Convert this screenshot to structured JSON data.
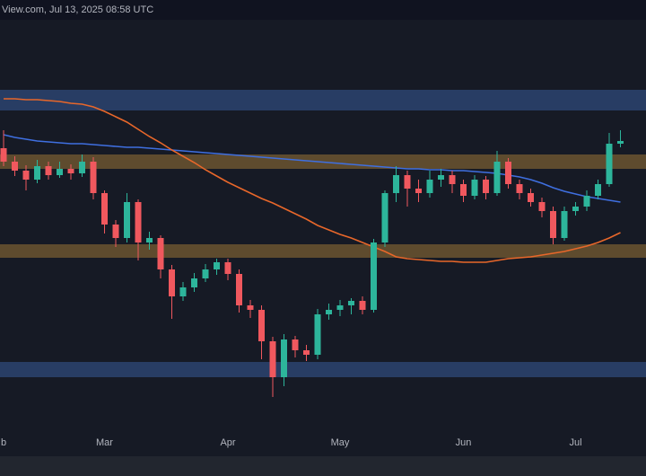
{
  "chart_data": {
    "type": "candlestick",
    "title": "View.com, Jul 13, 2025 08:58 UTC",
    "categories": [
      "b",
      null,
      null,
      null,
      null,
      null,
      null,
      null,
      null,
      "Mar",
      null,
      null,
      null,
      null,
      null,
      null,
      null,
      null,
      null,
      null,
      "Apr",
      null,
      null,
      null,
      null,
      null,
      null,
      null,
      null,
      null,
      "May",
      null,
      null,
      null,
      null,
      null,
      null,
      null,
      null,
      null,
      null,
      "Jun",
      null,
      null,
      null,
      null,
      null,
      null,
      null,
      null,
      null,
      "Jul",
      null,
      null,
      null,
      null
    ],
    "open": [
      365,
      350,
      340,
      330,
      345,
      335,
      342,
      337,
      350,
      315,
      280,
      265,
      305,
      260,
      265,
      230,
      200,
      210,
      220,
      230,
      238,
      225,
      190,
      185,
      150,
      110,
      152,
      140,
      135,
      180,
      185,
      190,
      195,
      185,
      260,
      315,
      335,
      320,
      315,
      330,
      335,
      325,
      312,
      330,
      315,
      350,
      325,
      315,
      305,
      295,
      265,
      295,
      300,
      312,
      325,
      370
    ],
    "high": [
      385,
      356,
      346,
      352,
      350,
      350,
      347,
      358,
      355,
      318,
      285,
      315,
      308,
      272,
      268,
      235,
      216,
      226,
      236,
      242,
      242,
      230,
      196,
      190,
      155,
      158,
      156,
      146,
      186,
      192,
      196,
      198,
      200,
      264,
      318,
      345,
      340,
      330,
      340,
      342,
      340,
      330,
      335,
      334,
      362,
      354,
      330,
      320,
      310,
      300,
      300,
      305,
      318,
      330,
      382,
      385
    ],
    "low": [
      345,
      334,
      318,
      326,
      330,
      332,
      330,
      333,
      308,
      270,
      255,
      260,
      240,
      252,
      220,
      175,
      195,
      205,
      216,
      224,
      218,
      182,
      176,
      130,
      88,
      100,
      132,
      128,
      130,
      174,
      178,
      180,
      180,
      182,
      255,
      305,
      300,
      305,
      310,
      322,
      315,
      305,
      308,
      308,
      312,
      320,
      308,
      300,
      288,
      258,
      262,
      290,
      295,
      308,
      322,
      366
    ],
    "close": [
      350,
      340,
      330,
      345,
      335,
      342,
      337,
      350,
      315,
      280,
      265,
      305,
      260,
      265,
      230,
      200,
      210,
      220,
      230,
      238,
      225,
      190,
      185,
      150,
      110,
      152,
      140,
      135,
      180,
      185,
      190,
      195,
      185,
      260,
      315,
      335,
      320,
      315,
      330,
      335,
      325,
      312,
      330,
      315,
      350,
      325,
      315,
      305,
      295,
      265,
      295,
      300,
      312,
      325,
      370,
      373
    ],
    "up_color": "#2db59b",
    "down_color": "#f0585e",
    "series": [
      {
        "color": "#3f6fe0",
        "values": [
          380,
          377,
          375,
          373,
          372,
          371,
          370,
          370,
          369,
          368,
          367,
          366,
          366,
          365,
          364,
          363,
          362,
          361,
          360,
          359,
          358,
          357,
          356,
          355,
          354,
          353,
          352,
          351,
          350,
          349,
          348,
          347,
          346,
          345,
          344,
          343,
          342,
          342,
          341,
          341,
          340,
          340,
          339,
          338,
          337,
          335,
          333,
          330,
          326,
          321,
          317,
          314,
          311,
          309,
          307,
          305
        ]
      },
      {
        "color": "#e8672a",
        "values": [
          420,
          420,
          419,
          419,
          418,
          417,
          415,
          414,
          411,
          406,
          400,
          394,
          386,
          378,
          371,
          363,
          356,
          349,
          341,
          334,
          327,
          321,
          315,
          309,
          304,
          298,
          292,
          286,
          279,
          274,
          269,
          265,
          260,
          255,
          250,
          244,
          242,
          241,
          240,
          239,
          239,
          238,
          238,
          238,
          240,
          242,
          243,
          244,
          246,
          248,
          250,
          253,
          256,
          260,
          265,
          271
        ]
      }
    ],
    "zones": [
      {
        "color": "#2c4470",
        "range": [
          407,
          430
        ]
      },
      {
        "color": "#6b5530",
        "range": [
          342,
          358
        ]
      },
      {
        "color": "#6b5530",
        "range": [
          243,
          258
        ]
      },
      {
        "color": "#2c4470",
        "range": [
          110,
          127
        ]
      }
    ],
    "ylim": [
      0,
      530
    ]
  }
}
